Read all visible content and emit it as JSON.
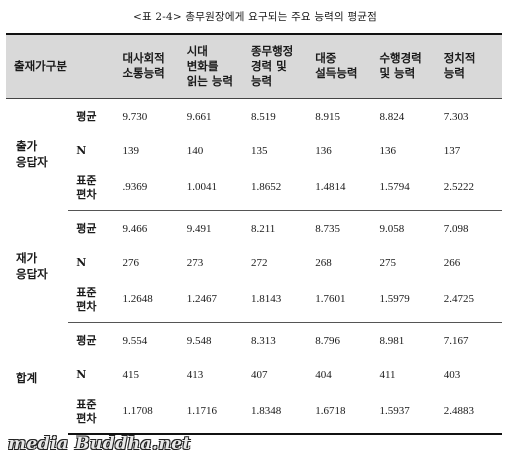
{
  "caption": "<표 2-4> 총무원장에게 요구되는 주요 능력의 평균점",
  "table": {
    "group_header": "출재가구분",
    "columns": [
      "대사회적\n소통능력",
      "시대\n변화를\n읽는 능력",
      "종무행정\n경력 및\n능력",
      "대중\n설득능력",
      "수행경력\n및 능력",
      "정치적\n능력"
    ],
    "groups": [
      {
        "label": "출가\n응답자",
        "rows": [
          {
            "stat": "평균",
            "values": [
              "9.730",
              "9.661",
              "8.519",
              "8.915",
              "8.824",
              "7.303"
            ]
          },
          {
            "stat": "N",
            "values": [
              "139",
              "140",
              "135",
              "136",
              "136",
              "137"
            ]
          },
          {
            "stat": "표준\n편차",
            "values": [
              ".9369",
              "1.0041",
              "1.8652",
              "1.4814",
              "1.5794",
              "2.5222"
            ]
          }
        ]
      },
      {
        "label": "재가\n응답자",
        "rows": [
          {
            "stat": "평균",
            "values": [
              "9.466",
              "9.491",
              "8.211",
              "8.735",
              "9.058",
              "7.098"
            ]
          },
          {
            "stat": "N",
            "values": [
              "276",
              "273",
              "272",
              "268",
              "275",
              "266"
            ]
          },
          {
            "stat": "표준\n편차",
            "values": [
              "1.2648",
              "1.2467",
              "1.8143",
              "1.7601",
              "1.5979",
              "2.4725"
            ]
          }
        ]
      },
      {
        "label": "합계",
        "rows": [
          {
            "stat": "평균",
            "values": [
              "9.554",
              "9.548",
              "8.313",
              "8.796",
              "8.981",
              "7.167"
            ]
          },
          {
            "stat": "N",
            "values": [
              "415",
              "413",
              "407",
              "404",
              "411",
              "403"
            ]
          },
          {
            "stat": "표준\n편차",
            "values": [
              "1.1708",
              "1.1716",
              "1.8348",
              "1.6718",
              "1.5937",
              "2.4883"
            ]
          }
        ]
      }
    ]
  },
  "watermark": "media Buddha.net"
}
